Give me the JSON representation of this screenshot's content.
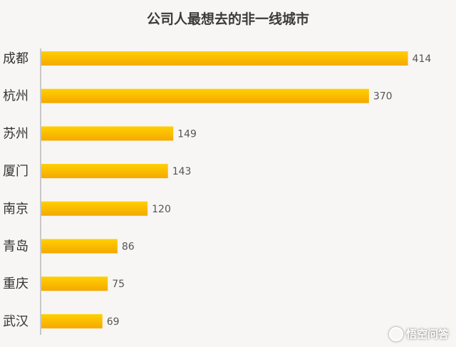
{
  "chart_data": {
    "type": "bar",
    "orientation": "horizontal",
    "title": "公司人最想去的非一线城市",
    "categories": [
      "成都",
      "杭州",
      "苏州",
      "厦门",
      "南京",
      "青岛",
      "重庆",
      "武汉"
    ],
    "values": [
      414,
      370,
      149,
      143,
      120,
      86,
      75,
      69
    ],
    "xlabel": "",
    "ylabel": "",
    "xlim": [
      0,
      420
    ],
    "grid": false,
    "legend": "none",
    "colors": {
      "bar_top": "#ffd000",
      "bar_bottom": "#f5a800",
      "background": "#f7f6f5",
      "axis": "#9a9a9a"
    }
  },
  "watermark": {
    "text": "悟空问答"
  }
}
